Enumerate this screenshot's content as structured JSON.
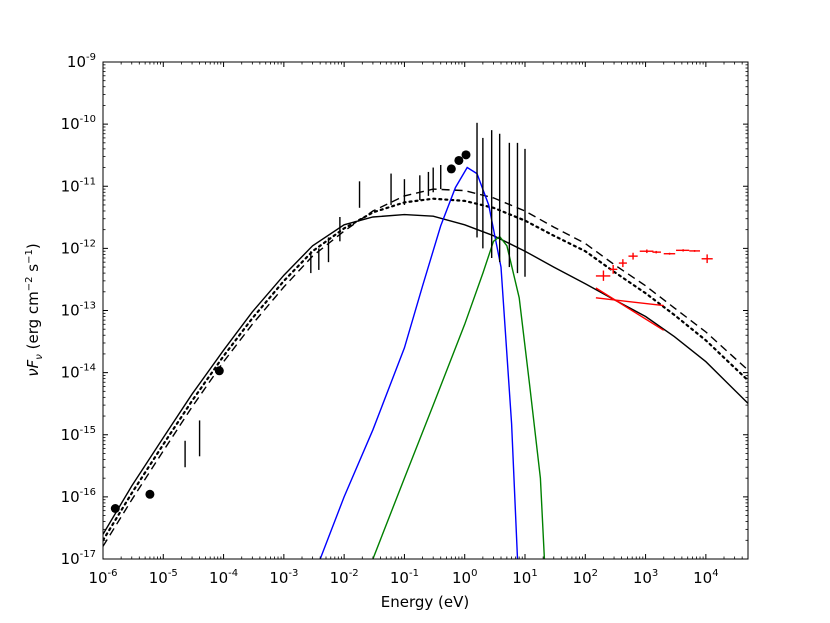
{
  "chart_data": {
    "type": "line",
    "title": "",
    "xlabel": "Energy (eV)",
    "ylabel_main": "νF",
    "ylabel_sub": "ν",
    "ylabel_units": " (erg cm",
    "ylabel_exp1": "−2",
    "ylabel_s": " s",
    "ylabel_exp2": "−1",
    "ylabel_close": ")",
    "xscale": "log",
    "yscale": "log",
    "xlim": [
      1e-06,
      50000
    ],
    "ylim": [
      1e-17,
      1e-09
    ],
    "xticks": [
      {
        "value": 1e-06,
        "base": "10",
        "exp": "-6"
      },
      {
        "value": 1e-05,
        "base": "10",
        "exp": "-5"
      },
      {
        "value": 0.0001,
        "base": "10",
        "exp": "-4"
      },
      {
        "value": 0.001,
        "base": "10",
        "exp": "-3"
      },
      {
        "value": 0.01,
        "base": "10",
        "exp": "-2"
      },
      {
        "value": 0.1,
        "base": "10",
        "exp": "-1"
      },
      {
        "value": 1.0,
        "base": "10",
        "exp": "0"
      },
      {
        "value": 10.0,
        "base": "10",
        "exp": "1"
      },
      {
        "value": 100.0,
        "base": "10",
        "exp": "2"
      },
      {
        "value": 1000.0,
        "base": "10",
        "exp": "3"
      },
      {
        "value": 10000.0,
        "base": "10",
        "exp": "4"
      }
    ],
    "yticks": [
      {
        "value": 1e-17,
        "base": "10",
        "exp": "-17"
      },
      {
        "value": 1e-16,
        "base": "10",
        "exp": "-16"
      },
      {
        "value": 1e-15,
        "base": "10",
        "exp": "-15"
      },
      {
        "value": 1e-14,
        "base": "10",
        "exp": "-14"
      },
      {
        "value": 1e-13,
        "base": "10",
        "exp": "-13"
      },
      {
        "value": 1e-12,
        "base": "10",
        "exp": "-12"
      },
      {
        "value": 1e-11,
        "base": "10",
        "exp": "-11"
      },
      {
        "value": 1e-10,
        "base": "10",
        "exp": "-10"
      },
      {
        "value": 1e-09,
        "base": "10",
        "exp": "-9"
      }
    ],
    "grid": false,
    "legend": "none",
    "series": [
      {
        "style": "solid",
        "color": "#000000",
        "points": [
          [
            1e-06,
            2.5e-17
          ],
          [
            3e-06,
            1.5e-16
          ],
          [
            1e-05,
            9e-16
          ],
          [
            3e-05,
            4.5e-15
          ],
          [
            0.0001,
            2.3e-14
          ],
          [
            0.0003,
            9.5e-14
          ],
          [
            0.001,
            3.7e-13
          ],
          [
            0.003,
            1.1e-12
          ],
          [
            0.01,
            2.4e-12
          ],
          [
            0.03,
            3.2e-12
          ],
          [
            0.1,
            3.5e-12
          ],
          [
            0.3,
            3.3e-12
          ],
          [
            1,
            2.4e-12
          ],
          [
            3,
            1.6e-12
          ],
          [
            10,
            9e-13
          ],
          [
            30,
            5e-13
          ],
          [
            100,
            2.7e-13
          ],
          [
            300,
            1.5e-13
          ],
          [
            1000,
            8e-14
          ],
          [
            3000,
            3.8e-14
          ],
          [
            10000,
            1.5e-14
          ],
          [
            50000,
            3.2e-15
          ]
        ]
      },
      {
        "style": "dashed",
        "color": "#000000",
        "points": [
          [
            1e-06,
            1.6e-17
          ],
          [
            3e-06,
            9e-17
          ],
          [
            1e-05,
            5.5e-16
          ],
          [
            3e-05,
            2.8e-15
          ],
          [
            0.0001,
            1.5e-14
          ],
          [
            0.0003,
            6e-14
          ],
          [
            0.001,
            2.4e-13
          ],
          [
            0.003,
            7.5e-13
          ],
          [
            0.01,
            1.9e-12
          ],
          [
            0.03,
            4e-12
          ],
          [
            0.1,
            7e-12
          ],
          [
            0.3,
            9e-12
          ],
          [
            1,
            8.5e-12
          ],
          [
            3,
            6.5e-12
          ],
          [
            10,
            4e-12
          ],
          [
            30,
            2.2e-12
          ],
          [
            100,
            1.2e-12
          ],
          [
            300,
            5.5e-13
          ],
          [
            1000,
            2.5e-13
          ],
          [
            3000,
            1.1e-13
          ],
          [
            10000,
            4.5e-14
          ],
          [
            50000,
            1.1e-14
          ]
        ]
      },
      {
        "style": "dotted",
        "color": "#000000",
        "points": [
          [
            1e-06,
            2e-17
          ],
          [
            3e-06,
            1.15e-16
          ],
          [
            1e-05,
            7e-16
          ],
          [
            3e-05,
            3.5e-15
          ],
          [
            0.0001,
            1.85e-14
          ],
          [
            0.0003,
            7.5e-14
          ],
          [
            0.001,
            3e-13
          ],
          [
            0.003,
            9e-13
          ],
          [
            0.01,
            2.1e-12
          ],
          [
            0.03,
            3.8e-12
          ],
          [
            0.1,
            5.5e-12
          ],
          [
            0.3,
            6.3e-12
          ],
          [
            1,
            5.8e-12
          ],
          [
            3,
            4.5e-12
          ],
          [
            10,
            2.8e-12
          ],
          [
            30,
            1.6e-12
          ],
          [
            100,
            9e-13
          ],
          [
            300,
            4.2e-13
          ],
          [
            1000,
            1.9e-13
          ],
          [
            3000,
            8.5e-14
          ],
          [
            10000,
            3.3e-14
          ],
          [
            50000,
            7.5e-15
          ]
        ]
      },
      {
        "style": "solid",
        "color": "#0000ff",
        "points": [
          [
            0.004,
            1e-17
          ],
          [
            0.01,
            1e-16
          ],
          [
            0.03,
            1.2e-15
          ],
          [
            0.1,
            2.5e-14
          ],
          [
            0.2,
            2.5e-13
          ],
          [
            0.4,
            2.3e-12
          ],
          [
            0.7,
            9.5e-12
          ],
          [
            1.1,
            2e-11
          ],
          [
            1.6,
            1.6e-11
          ],
          [
            2.5,
            5e-12
          ],
          [
            4,
            5e-13
          ],
          [
            6,
            1.5e-15
          ],
          [
            7.5,
            1e-17
          ]
        ]
      },
      {
        "style": "solid",
        "color": "#008000",
        "points": [
          [
            0.03,
            1e-17
          ],
          [
            0.1,
            2e-16
          ],
          [
            0.3,
            3e-15
          ],
          [
            1,
            6e-14
          ],
          [
            2,
            4e-13
          ],
          [
            3,
            1.3e-12
          ],
          [
            3.8,
            1.55e-12
          ],
          [
            5,
            1.1e-12
          ],
          [
            8,
            1.6e-13
          ],
          [
            12,
            6e-15
          ],
          [
            18,
            2e-16
          ],
          [
            21,
            1e-17
          ]
        ]
      },
      {
        "style": "solid",
        "color": "#ff0000",
        "points": [
          [
            150,
            1.6e-13
          ],
          [
            2000,
            1.2e-13
          ]
        ]
      },
      {
        "style": "solid",
        "color": "#ff0000",
        "points": [
          [
            150,
            2.3e-13
          ],
          [
            2000,
            4.8e-14
          ]
        ]
      }
    ],
    "points_black": [
      [
        1.6e-06,
        6.5e-17
      ],
      [
        6e-06,
        1.1e-16
      ],
      [
        8.5e-05,
        1.07e-14
      ],
      [
        0.6,
        1.9e-11
      ],
      [
        0.8,
        2.6e-11
      ],
      [
        1.05,
        3.2e-11
      ]
    ],
    "error_bars": [
      {
        "x": 2.3e-05,
        "lo": 3e-16,
        "hi": 8e-16
      },
      {
        "x": 4e-05,
        "lo": 4.5e-16,
        "hi": 1.7e-15
      },
      {
        "x": 0.0028,
        "lo": 4e-13,
        "hi": 9e-13
      },
      {
        "x": 0.0038,
        "lo": 4.5e-13,
        "hi": 1e-12
      },
      {
        "x": 0.0055,
        "lo": 6e-13,
        "hi": 1.5e-12
      },
      {
        "x": 0.0085,
        "lo": 1.3e-12,
        "hi": 3.2e-12
      },
      {
        "x": 0.018,
        "lo": 4.5e-12,
        "hi": 1.2e-11
      },
      {
        "x": 0.06,
        "lo": 5e-12,
        "hi": 1.6e-11
      },
      {
        "x": 0.1,
        "lo": 5e-12,
        "hi": 1.3e-11
      },
      {
        "x": 0.18,
        "lo": 6e-12,
        "hi": 1.5e-11
      },
      {
        "x": 0.25,
        "lo": 7e-12,
        "hi": 1.7e-11
      },
      {
        "x": 0.3,
        "lo": 8e-12,
        "hi": 2e-11
      },
      {
        "x": 0.4,
        "lo": 9e-12,
        "hi": 2.2e-11
      },
      {
        "x": 1.6,
        "lo": 1.5e-12,
        "hi": 1.05e-10
      },
      {
        "x": 2,
        "lo": 1e-12,
        "hi": 6e-11
      },
      {
        "x": 2.8,
        "lo": 7e-13,
        "hi": 8e-11
      },
      {
        "x": 3.8,
        "lo": 6e-13,
        "hi": 7e-11
      },
      {
        "x": 5.5,
        "lo": 5e-13,
        "hi": 5e-11
      },
      {
        "x": 7.5,
        "lo": 4e-13,
        "hi": 5e-11
      },
      {
        "x": 10,
        "lo": 3.5e-13,
        "hi": 4e-11
      }
    ],
    "red_crosses": [
      {
        "x": 200,
        "y": 3.6e-13,
        "xlo": 150,
        "xhi": 260,
        "ylo": 3e-13,
        "yhi": 4.4e-13
      },
      {
        "x": 290,
        "y": 4.6e-13,
        "xlo": 250,
        "xhi": 340,
        "ylo": 3.9e-13,
        "yhi": 5.4e-13
      },
      {
        "x": 420,
        "y": 5.8e-13,
        "xlo": 360,
        "xhi": 490,
        "ylo": 5e-13,
        "yhi": 6.7e-13
      },
      {
        "x": 620,
        "y": 7.5e-13,
        "xlo": 520,
        "xhi": 740,
        "ylo": 6.6e-13,
        "yhi": 8.5e-13
      },
      {
        "x": 1050,
        "y": 9e-13,
        "xlo": 800,
        "xhi": 1350,
        "ylo": 8.4e-13,
        "yhi": 9.6e-13
      },
      {
        "x": 1500,
        "y": 8.7e-13,
        "xlo": 1300,
        "xhi": 1800,
        "ylo": 8.3e-13,
        "yhi": 9.1e-13
      },
      {
        "x": 2500,
        "y": 8.2e-13,
        "xlo": 2000,
        "xhi": 3100,
        "ylo": 7.9e-13,
        "yhi": 8.5e-13
      },
      {
        "x": 4200,
        "y": 9.3e-13,
        "xlo": 3200,
        "xhi": 5300,
        "ylo": 8.9e-13,
        "yhi": 9.7e-13
      },
      {
        "x": 6500,
        "y": 9.1e-13,
        "xlo": 5300,
        "xhi": 8000,
        "ylo": 8.8e-13,
        "yhi": 9.4e-13
      },
      {
        "x": 10500,
        "y": 6.8e-13,
        "xlo": 8500,
        "xhi": 13000,
        "ylo": 5.8e-13,
        "yhi": 8e-13
      }
    ]
  }
}
